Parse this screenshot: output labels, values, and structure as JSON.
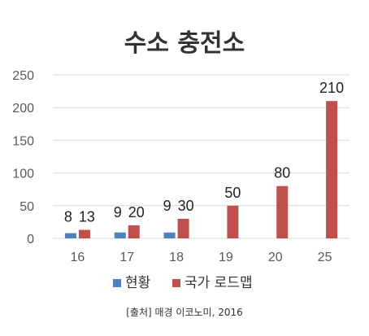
{
  "chart_data": {
    "type": "bar",
    "title": "수소 충전소",
    "categories": [
      "16",
      "17",
      "18",
      "19",
      "20",
      "25"
    ],
    "series": [
      {
        "name": "현황",
        "color": "#4f81bd",
        "values": [
          8,
          9,
          9,
          null,
          null,
          null
        ]
      },
      {
        "name": "국가 로드맵",
        "color": "#c0504d",
        "values": [
          13,
          20,
          30,
          50,
          80,
          210
        ]
      }
    ],
    "y_ticks": [
      0,
      50,
      100,
      150,
      200,
      250
    ],
    "ylim": [
      0,
      250
    ],
    "grid": true,
    "legend_position": "bottom",
    "source": "[출처] 매경 이코노미, 2016"
  }
}
